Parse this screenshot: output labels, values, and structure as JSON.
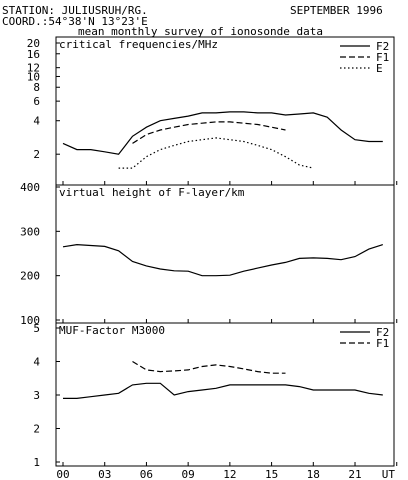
{
  "header": {
    "station": "STATION: JULIUSRUH/RG.",
    "coord": "COORD.:54°38'N 13°23'E",
    "date": "SEPTEMBER 1996",
    "subtitle": "mean monthly survey of ionosonde data"
  },
  "colors": {
    "line": "#000000",
    "background": "#ffffff"
  },
  "chart_data": [
    {
      "type": "line",
      "title": "critical frequencies/MHz",
      "yscale": "log",
      "ylim": [
        1.3,
        20
      ],
      "ytick_labels": [
        "2",
        "4",
        "6",
        "8",
        "10",
        "12",
        "16",
        "20"
      ],
      "xlim": [
        0,
        24
      ],
      "x": [
        0,
        1,
        2,
        3,
        4,
        5,
        6,
        7,
        8,
        9,
        10,
        11,
        12,
        13,
        14,
        15,
        16,
        17,
        18,
        19,
        20,
        21,
        22,
        23
      ],
      "legend_position": "top-right",
      "series": [
        {
          "name": "F2",
          "style": "solid",
          "values": [
            2.5,
            2.2,
            2.2,
            2.1,
            2.0,
            2.9,
            3.5,
            4.0,
            4.2,
            4.4,
            4.7,
            4.7,
            4.8,
            4.8,
            4.7,
            4.7,
            4.5,
            4.6,
            4.7,
            4.3,
            3.3,
            2.7,
            2.6,
            2.6
          ]
        },
        {
          "name": "F1",
          "style": "dashed",
          "values": [
            null,
            null,
            null,
            null,
            null,
            2.5,
            3.0,
            3.3,
            3.5,
            3.7,
            3.8,
            3.9,
            3.9,
            3.8,
            3.7,
            3.5,
            3.3,
            null,
            null,
            null,
            null,
            null,
            null,
            null
          ]
        },
        {
          "name": "E",
          "style": "dotted",
          "values": [
            null,
            null,
            null,
            null,
            1.5,
            1.5,
            1.9,
            2.2,
            2.4,
            2.6,
            2.7,
            2.8,
            2.7,
            2.6,
            2.4,
            2.2,
            1.9,
            1.6,
            1.5,
            null,
            null,
            null,
            null,
            null
          ]
        }
      ]
    },
    {
      "type": "line",
      "title": "virtual height of F-layer/km",
      "ylim": [
        100,
        400
      ],
      "ytick_labels": [
        "100",
        "200",
        "300",
        "400"
      ],
      "xlim": [
        0,
        24
      ],
      "x": [
        0,
        1,
        2,
        3,
        4,
        5,
        6,
        7,
        8,
        9,
        10,
        11,
        12,
        13,
        14,
        15,
        16,
        17,
        18,
        19,
        20,
        21,
        22,
        23
      ],
      "series": [
        {
          "name": "",
          "style": "solid",
          "values": [
            265,
            270,
            268,
            266,
            256,
            232,
            222,
            215,
            211,
            210,
            200,
            200,
            201,
            210,
            217,
            224,
            230,
            239,
            240,
            239,
            236,
            243,
            260,
            270
          ]
        }
      ]
    },
    {
      "type": "line",
      "title": "MUF-Factor M3000",
      "ylim": [
        1,
        5
      ],
      "ytick_labels": [
        "1",
        "2",
        "3",
        "4",
        "5"
      ],
      "xlim": [
        0,
        24
      ],
      "x": [
        0,
        1,
        2,
        3,
        4,
        5,
        6,
        7,
        8,
        9,
        10,
        11,
        12,
        13,
        14,
        15,
        16,
        17,
        18,
        19,
        20,
        21,
        22,
        23
      ],
      "legend_position": "top-right",
      "series": [
        {
          "name": "F2",
          "style": "solid",
          "values": [
            2.9,
            2.9,
            2.95,
            3.0,
            3.05,
            3.3,
            3.35,
            3.35,
            3.0,
            3.1,
            3.15,
            3.2,
            3.3,
            3.3,
            3.3,
            3.3,
            3.3,
            3.25,
            3.15,
            3.15,
            3.15,
            3.15,
            3.05,
            3.0
          ]
        },
        {
          "name": "F1",
          "style": "dashed",
          "values": [
            null,
            null,
            null,
            null,
            null,
            4.0,
            3.75,
            3.7,
            3.72,
            3.75,
            3.85,
            3.9,
            3.85,
            3.78,
            3.7,
            3.65,
            3.65,
            null,
            null,
            null,
            null,
            null,
            null,
            null
          ]
        }
      ]
    }
  ],
  "x_axis": {
    "tick_labels": [
      "00",
      "03",
      "06",
      "09",
      "12",
      "15",
      "18",
      "21",
      "UT"
    ]
  }
}
